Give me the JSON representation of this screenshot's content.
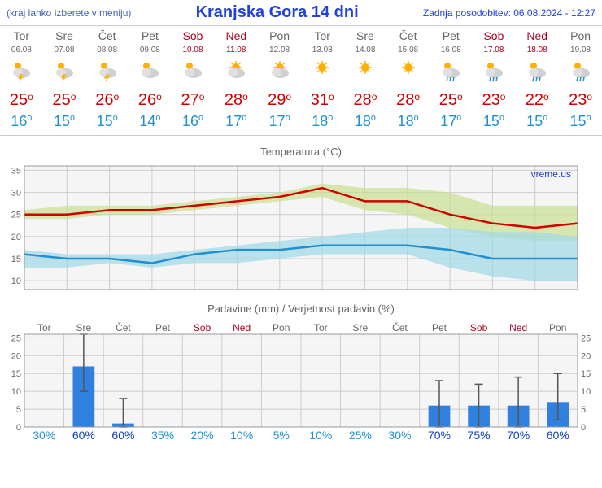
{
  "header": {
    "menu_note": "(kraj lahko izberete v meniju)",
    "title": "Kranjska Gora 14 dni",
    "updated": "Zadnja posodobitev: 06.08.2024 - 12:27"
  },
  "days": [
    {
      "abbr": "Tor",
      "date": "06.08",
      "weekend": false,
      "icon": "storm",
      "high": 25,
      "low": 16
    },
    {
      "abbr": "Sre",
      "date": "07.08",
      "weekend": false,
      "icon": "storm",
      "high": 25,
      "low": 15
    },
    {
      "abbr": "Čet",
      "date": "08.08",
      "weekend": false,
      "icon": "storm",
      "high": 26,
      "low": 15
    },
    {
      "abbr": "Pet",
      "date": "09.08",
      "weekend": false,
      "icon": "cloudy",
      "high": 26,
      "low": 14
    },
    {
      "abbr": "Sob",
      "date": "10.08",
      "weekend": true,
      "icon": "cloudy",
      "high": 27,
      "low": 16
    },
    {
      "abbr": "Ned",
      "date": "11.08",
      "weekend": true,
      "icon": "partly",
      "high": 28,
      "low": 17
    },
    {
      "abbr": "Pon",
      "date": "12.08",
      "weekend": false,
      "icon": "partly",
      "high": 29,
      "low": 17
    },
    {
      "abbr": "Tor",
      "date": "13.08",
      "weekend": false,
      "icon": "sunny",
      "high": 31,
      "low": 18
    },
    {
      "abbr": "Sre",
      "date": "14.08",
      "weekend": false,
      "icon": "sunny",
      "high": 28,
      "low": 18
    },
    {
      "abbr": "Čet",
      "date": "15.08",
      "weekend": false,
      "icon": "sunny",
      "high": 28,
      "low": 18
    },
    {
      "abbr": "Pet",
      "date": "16.08",
      "weekend": false,
      "icon": "rain",
      "high": 25,
      "low": 17
    },
    {
      "abbr": "Sob",
      "date": "17.08",
      "weekend": true,
      "icon": "rain",
      "high": 23,
      "low": 15
    },
    {
      "abbr": "Ned",
      "date": "18.08",
      "weekend": true,
      "icon": "rain",
      "high": 22,
      "low": 15
    },
    {
      "abbr": "Pon",
      "date": "19.08",
      "weekend": false,
      "icon": "rain",
      "high": 23,
      "low": 15
    }
  ],
  "temp_chart": {
    "title": "Temperatura (°C)",
    "watermark": "vreme.us",
    "ylim": [
      8,
      36
    ],
    "yticks": [
      10,
      15,
      20,
      25,
      30,
      35
    ],
    "x_count": 14,
    "high_line_color": "#d00000",
    "low_line_color": "#2090d0",
    "high_band_color": "#c8e090",
    "low_band_color": "#a0d8e8",
    "grid_color": "#cccccc",
    "plot_bg": "#f5f5f5",
    "high": [
      25,
      25,
      26,
      26,
      27,
      28,
      29,
      31,
      28,
      28,
      25,
      23,
      22,
      23
    ],
    "high_upper": [
      26,
      27,
      27,
      27,
      28,
      29,
      30,
      32,
      31,
      31,
      30,
      27,
      27,
      27
    ],
    "high_lower": [
      24,
      24,
      25,
      25,
      26,
      27,
      28,
      29,
      26,
      25,
      22,
      20,
      19,
      19
    ],
    "low": [
      16,
      15,
      15,
      14,
      16,
      17,
      17,
      18,
      18,
      18,
      17,
      15,
      15,
      15
    ],
    "low_upper": [
      17,
      16,
      16,
      16,
      17,
      18,
      19,
      20,
      21,
      22,
      22,
      21,
      21,
      20
    ],
    "low_lower": [
      13,
      13,
      14,
      13,
      14,
      14,
      15,
      16,
      16,
      16,
      13,
      11,
      10,
      10
    ]
  },
  "precip_chart": {
    "title": "Padavine (mm) / Verjetnost padavin (%)",
    "ylim": [
      0,
      26
    ],
    "yticks": [
      0,
      5,
      10,
      15,
      20,
      25
    ],
    "bar_color": "#3080e0",
    "error_color": "#555",
    "grid_color": "#cccccc",
    "plot_bg": "#f5f5f5",
    "prob_color_low": "#2090d0",
    "prob_color_high": "#1040c0",
    "days": [
      "Tor",
      "Sre",
      "Čet",
      "Pet",
      "Sob",
      "Ned",
      "Pon",
      "Tor",
      "Sre",
      "Čet",
      "Pet",
      "Sob",
      "Ned",
      "Pon"
    ],
    "weekend": [
      false,
      false,
      false,
      false,
      true,
      true,
      false,
      false,
      false,
      false,
      false,
      true,
      true,
      false
    ],
    "mm": [
      0,
      17,
      1,
      0,
      0,
      0,
      0,
      0,
      0,
      0,
      6,
      6,
      6,
      7
    ],
    "err_low": [
      0,
      10,
      0,
      0,
      0,
      0,
      0,
      0,
      0,
      0,
      0,
      0,
      0,
      2
    ],
    "err_high": [
      0,
      26,
      8,
      0,
      0,
      0,
      0,
      0,
      0,
      0,
      13,
      12,
      14,
      15
    ],
    "prob": [
      30,
      60,
      60,
      35,
      20,
      10,
      5,
      10,
      25,
      30,
      70,
      75,
      70,
      60
    ]
  }
}
